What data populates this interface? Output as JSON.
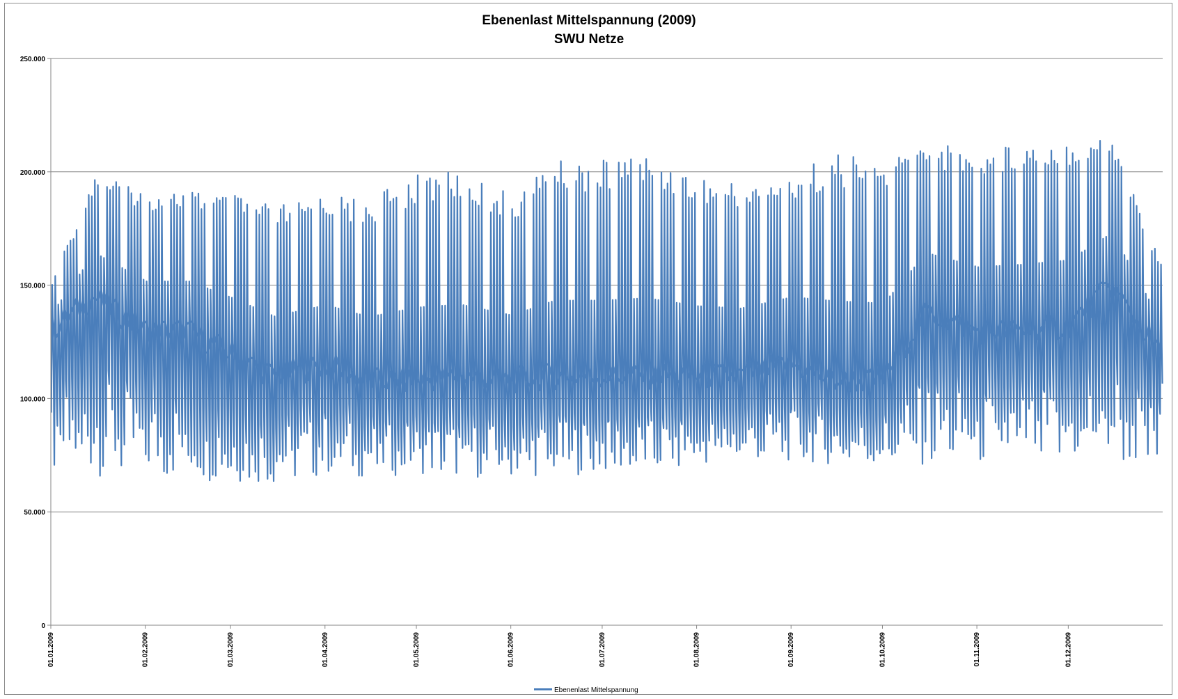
{
  "chart_data": {
    "type": "line",
    "title": "Ebenenlast Mittelspannung (2009)",
    "subtitle": "SWU Netze",
    "xlabel": "",
    "ylabel": "",
    "ylim": [
      0,
      250000
    ],
    "yticks": [
      {
        "value": 0,
        "label": "0"
      },
      {
        "value": 50000,
        "label": "50.000"
      },
      {
        "value": 100000,
        "label": "100.000"
      },
      {
        "value": 150000,
        "label": "150.000"
      },
      {
        "value": 200000,
        "label": "200.000"
      },
      {
        "value": 250000,
        "label": "250.000"
      }
    ],
    "xlim": [
      "2009-01-01",
      "2010-01-01"
    ],
    "xticks": [
      {
        "date": "2009-01-01",
        "label": "01.01.2009"
      },
      {
        "date": "2009-02-01",
        "label": "01.02.2009"
      },
      {
        "date": "2009-03-01",
        "label": "01.03.2009"
      },
      {
        "date": "2009-04-01",
        "label": "01.04.2009"
      },
      {
        "date": "2009-05-01",
        "label": "01.05.2009"
      },
      {
        "date": "2009-06-01",
        "label": "01.06.2009"
      },
      {
        "date": "2009-07-01",
        "label": "01.07.2009"
      },
      {
        "date": "2009-08-01",
        "label": "01.08.2009"
      },
      {
        "date": "2009-09-01",
        "label": "01.09.2009"
      },
      {
        "date": "2009-10-01",
        "label": "01.10.2009"
      },
      {
        "date": "2009-11-01",
        "label": "01.11.2009"
      },
      {
        "date": "2009-12-01",
        "label": "01.12.2009"
      }
    ],
    "grid": {
      "horizontal": true,
      "vertical": false
    },
    "legend": "bottom-center",
    "series": [
      {
        "name": "Ebenenlast Mittelspannung",
        "color": "#4a7ebb",
        "x": [
          "2009-01-01",
          "2009-01-15",
          "2009-02-01",
          "2009-02-15",
          "2009-03-01",
          "2009-03-15",
          "2009-04-01",
          "2009-04-15",
          "2009-05-01",
          "2009-05-15",
          "2009-06-01",
          "2009-06-15",
          "2009-07-01",
          "2009-07-15",
          "2009-08-01",
          "2009-08-15",
          "2009-09-01",
          "2009-09-15",
          "2009-10-01",
          "2009-10-15",
          "2009-11-01",
          "2009-11-15",
          "2009-12-01",
          "2009-12-15",
          "2009-12-31"
        ],
        "daily_max": [
          152000,
          200000,
          192000,
          192000,
          190000,
          185000,
          190000,
          188000,
          200000,
          200000,
          190000,
          205000,
          205000,
          208000,
          198000,
          195000,
          200000,
          208000,
          205000,
          213000,
          210000,
          213000,
          215000,
          216000,
          160000
        ],
        "daily_min": [
          64000,
          66000,
          65000,
          64000,
          63000,
          62000,
          66000,
          65000,
          67000,
          65000,
          65000,
          66000,
          67000,
          67000,
          70000,
          72000,
          72000,
          71000,
          70000,
          70000,
          70000,
          70000,
          70000,
          72000,
          66000
        ],
        "trend": [
          130000,
          145000,
          130000,
          130000,
          120000,
          110000,
          115000,
          108000,
          108000,
          110000,
          108000,
          110000,
          110000,
          110000,
          110000,
          110000,
          115000,
          108000,
          108000,
          138000,
          130000,
          130000,
          132000,
          150000,
          120000
        ]
      }
    ]
  }
}
